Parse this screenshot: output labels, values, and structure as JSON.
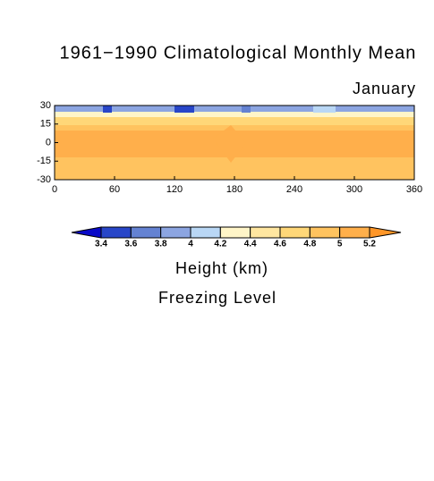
{
  "chart_data": {
    "type": "map",
    "title": "1961−1990 Climatological Monthly Mean",
    "subtitle": "January",
    "xlim": [
      0,
      360
    ],
    "xticks": [
      0,
      60,
      120,
      180,
      240,
      300,
      360
    ],
    "ylim": [
      -30,
      30
    ],
    "yticks": [
      30,
      15,
      0,
      -15,
      -30
    ],
    "colorbar": {
      "levels": [
        3.4,
        3.6,
        3.8,
        4,
        4.2,
        4.4,
        4.6,
        4.8,
        5,
        5.2
      ],
      "colors": [
        "#0a0ac8",
        "#2846c8",
        "#6482d2",
        "#8ca5e1",
        "#b9d7f5",
        "#fff5c8",
        "#ffe6a0",
        "#ffd778",
        "#ffc35f",
        "#ffaf4b",
        "#ff9628"
      ],
      "label": "Height (km)"
    },
    "variable": "Freezing Level"
  }
}
